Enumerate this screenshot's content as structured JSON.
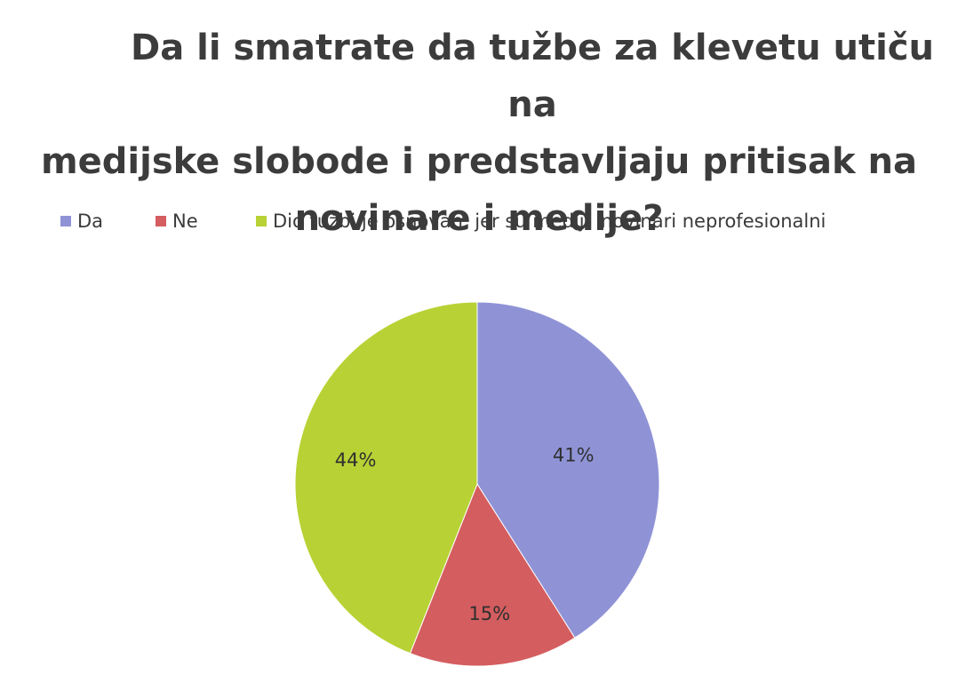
{
  "chart_data": {
    "type": "pie",
    "title": [
      "Da li smatrate da tužbe za klevetu utiču na",
      "medijske slobode i predstavljaju pritisak na",
      "novinare i medije?"
    ],
    "legend_position": "top",
    "series": [
      {
        "name": "Da",
        "value": 41,
        "label": "41%",
        "color": "#8f93d6"
      },
      {
        "name": "Ne",
        "value": 15,
        "label": "15%",
        "color": "#d45d5f"
      },
      {
        "name": "Dio tužbi je osnovan, jer su mediji inovinari neprofesionalni",
        "value": 44,
        "label": "44%",
        "color": "#b8d235"
      }
    ]
  }
}
